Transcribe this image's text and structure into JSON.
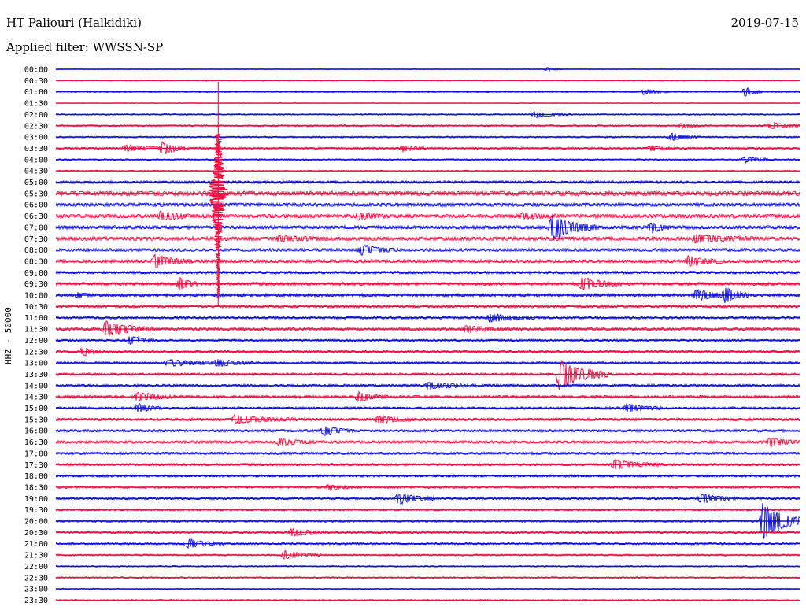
{
  "header": {
    "station": "HT Paliouri (Halkidiki)",
    "date": "2019-07-15",
    "filter": "Applied filter: WWSSN-SP"
  },
  "channel_label": "HHZ - 50000",
  "colors": {
    "odd": "#1010dd",
    "even": "#ee1144"
  },
  "chart_data": {
    "type": "line",
    "title": "HT Paliouri (Halkidiki)",
    "subtitle": "Applied filter: WWSSN-SP",
    "ylabel": "HHZ - 50000",
    "xlabel": "",
    "grid": false,
    "legend": "none",
    "xlim_minutes": [
      0,
      30
    ],
    "row_labels": [
      "00:00",
      "00:30",
      "01:00",
      "01:30",
      "02:00",
      "02:30",
      "03:00",
      "03:30",
      "04:00",
      "04:30",
      "05:00",
      "05:30",
      "06:00",
      "06:30",
      "07:00",
      "07:30",
      "08:00",
      "08:30",
      "09:00",
      "09:30",
      "10:00",
      "10:30",
      "11:00",
      "11:30",
      "12:00",
      "12:30",
      "13:00",
      "13:30",
      "14:00",
      "14:30",
      "15:00",
      "15:30",
      "16:00",
      "16:30",
      "17:00",
      "17:30",
      "18:00",
      "18:30",
      "19:00",
      "19:30",
      "20:00",
      "20:30",
      "21:00",
      "21:30",
      "22:00",
      "22:30",
      "23:00",
      "23:30"
    ],
    "row_noise": [
      0.3,
      0.35,
      0.5,
      0.3,
      0.6,
      0.8,
      0.7,
      0.9,
      0.7,
      0.6,
      1.2,
      2.0,
      1.5,
      1.6,
      1.5,
      1.6,
      1.3,
      1.4,
      1.2,
      1.3,
      1.3,
      1.2,
      1.1,
      1.2,
      1.0,
      1.1,
      1.0,
      1.1,
      1.2,
      1.2,
      1.1,
      1.2,
      1.1,
      1.2,
      1.1,
      1.1,
      1.0,
      1.0,
      1.0,
      0.9,
      1.0,
      1.0,
      0.9,
      0.8,
      0.6,
      0.7,
      0.5,
      0.6
    ],
    "events": [
      {
        "row": 0,
        "minute": 19.8,
        "amp": 2.5,
        "dur": 0.6
      },
      {
        "row": 2,
        "minute": 23.7,
        "amp": 4,
        "dur": 1.0
      },
      {
        "row": 2,
        "minute": 27.8,
        "amp": 6,
        "dur": 0.8
      },
      {
        "row": 4,
        "minute": 19.3,
        "amp": 4,
        "dur": 1.5
      },
      {
        "row": 5,
        "minute": 25.2,
        "amp": 3,
        "dur": 1.0
      },
      {
        "row": 5,
        "minute": 28.8,
        "amp": 4,
        "dur": 1.5
      },
      {
        "row": 6,
        "minute": 24.8,
        "amp": 5,
        "dur": 1.2
      },
      {
        "row": 7,
        "minute": 2.8,
        "amp": 4,
        "dur": 2.0
      },
      {
        "row": 7,
        "minute": 4.3,
        "amp": 8,
        "dur": 1.0
      },
      {
        "row": 7,
        "minute": 14.0,
        "amp": 4,
        "dur": 1.0
      },
      {
        "row": 7,
        "minute": 24.0,
        "amp": 3,
        "dur": 1.0
      },
      {
        "row": 8,
        "minute": 27.8,
        "amp": 4,
        "dur": 1.2
      },
      {
        "row": 13,
        "minute": 4.2,
        "amp": 5,
        "dur": 1.5
      },
      {
        "row": 13,
        "minute": 12.2,
        "amp": 4,
        "dur": 1.2
      },
      {
        "row": 13,
        "minute": 18.8,
        "amp": 3,
        "dur": 1.5
      },
      {
        "row": 14,
        "minute": 20.0,
        "amp": 16,
        "dur": 1.8
      },
      {
        "row": 14,
        "minute": 24.0,
        "amp": 7,
        "dur": 0.8
      },
      {
        "row": 15,
        "minute": 9.0,
        "amp": 3,
        "dur": 2.0
      },
      {
        "row": 15,
        "minute": 25.8,
        "amp": 5,
        "dur": 2.5
      },
      {
        "row": 16,
        "minute": 12.3,
        "amp": 6,
        "dur": 1.5
      },
      {
        "row": 17,
        "minute": 4.0,
        "amp": 8,
        "dur": 1.5
      },
      {
        "row": 17,
        "minute": 25.5,
        "amp": 6,
        "dur": 1.5
      },
      {
        "row": 19,
        "minute": 5.0,
        "amp": 8,
        "dur": 0.7
      },
      {
        "row": 19,
        "minute": 21.2,
        "amp": 8,
        "dur": 1.6
      },
      {
        "row": 20,
        "minute": 0.9,
        "amp": 4,
        "dur": 0.4
      },
      {
        "row": 20,
        "minute": 25.8,
        "amp": 7,
        "dur": 1.5
      },
      {
        "row": 20,
        "minute": 27.0,
        "amp": 9,
        "dur": 1.0
      },
      {
        "row": 22,
        "minute": 17.5,
        "amp": 5,
        "dur": 2.0
      },
      {
        "row": 23,
        "minute": 2.0,
        "amp": 10,
        "dur": 2.0
      },
      {
        "row": 23,
        "minute": 16.5,
        "amp": 4,
        "dur": 2.0
      },
      {
        "row": 24,
        "minute": 3.0,
        "amp": 6,
        "dur": 1.0
      },
      {
        "row": 25,
        "minute": 1.1,
        "amp": 6,
        "dur": 0.8
      },
      {
        "row": 26,
        "minute": 4.5,
        "amp": 4,
        "dur": 2.5
      },
      {
        "row": 26,
        "minute": 6.5,
        "amp": 4,
        "dur": 1.5
      },
      {
        "row": 27,
        "minute": 20.3,
        "amp": 20,
        "dur": 2.0
      },
      {
        "row": 28,
        "minute": 15.0,
        "amp": 4,
        "dur": 2.0
      },
      {
        "row": 29,
        "minute": 3.3,
        "amp": 6,
        "dur": 1.5
      },
      {
        "row": 29,
        "minute": 12.2,
        "amp": 6,
        "dur": 1.2
      },
      {
        "row": 30,
        "minute": 3.3,
        "amp": 6,
        "dur": 1.0
      },
      {
        "row": 30,
        "minute": 23.0,
        "amp": 5,
        "dur": 1.5
      },
      {
        "row": 31,
        "minute": 7.2,
        "amp": 5,
        "dur": 2.5
      },
      {
        "row": 31,
        "minute": 13.0,
        "amp": 5,
        "dur": 1.5
      },
      {
        "row": 32,
        "minute": 10.8,
        "amp": 6,
        "dur": 1.2
      },
      {
        "row": 33,
        "minute": 9.0,
        "amp": 4,
        "dur": 1.5
      },
      {
        "row": 33,
        "minute": 28.8,
        "amp": 6,
        "dur": 1.2
      },
      {
        "row": 35,
        "minute": 22.5,
        "amp": 6,
        "dur": 2.0
      },
      {
        "row": 37,
        "minute": 11.0,
        "amp": 4,
        "dur": 1.0
      },
      {
        "row": 38,
        "minute": 13.8,
        "amp": 7,
        "dur": 1.5
      },
      {
        "row": 38,
        "minute": 26.0,
        "amp": 6,
        "dur": 1.5
      },
      {
        "row": 40,
        "minute": 28.5,
        "amp": 24,
        "dur": 1.8
      },
      {
        "row": 41,
        "minute": 9.5,
        "amp": 5,
        "dur": 1.5
      },
      {
        "row": 42,
        "minute": 5.3,
        "amp": 6,
        "dur": 1.5
      },
      {
        "row": 43,
        "minute": 9.2,
        "amp": 5,
        "dur": 1.5
      }
    ],
    "large_event": {
      "start_row": 6,
      "end_row": 20,
      "minute": 6.55,
      "peak_row": 11
    }
  }
}
